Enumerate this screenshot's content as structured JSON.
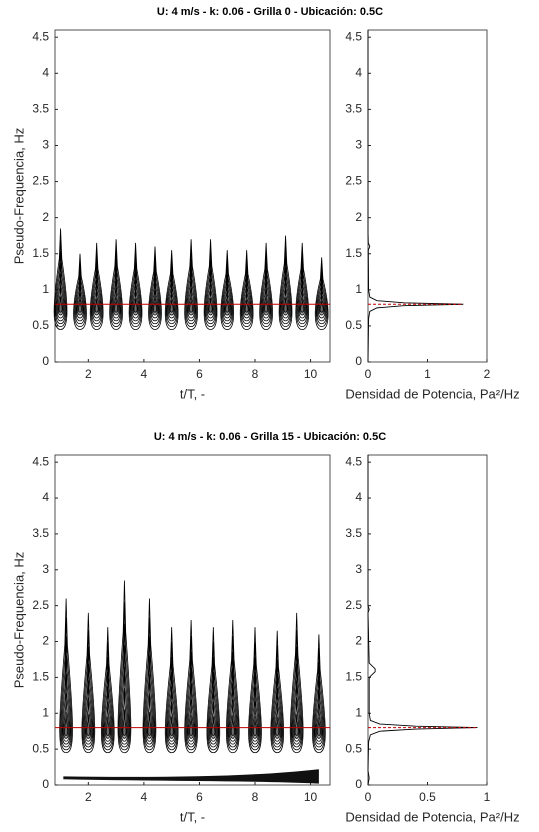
{
  "chart_data": [
    {
      "type": "contour",
      "title": "U: 4 m/s - k: 0.06 - Grilla 0 - Ubicación: 0.5C",
      "xlabel": "t/T, -",
      "ylabel": "Pseudo-Frequencia, Hz",
      "xlim": [
        0.8,
        10.7
      ],
      "xticks": [
        2,
        4,
        6,
        8,
        10
      ],
      "ylim": [
        0,
        4.6
      ],
      "yticks": [
        0,
        0.5,
        1,
        1.5,
        2,
        2.5,
        3,
        3.5,
        4,
        4.5
      ],
      "lobes": {
        "x": [
          1.0,
          1.7,
          2.3,
          3.0,
          3.7,
          4.4,
          5.0,
          5.7,
          6.4,
          7.0,
          7.7,
          8.4,
          9.1,
          9.7,
          10.4
        ],
        "values": [
          1.85,
          1.5,
          1.65,
          1.7,
          1.65,
          1.6,
          1.55,
          1.7,
          1.7,
          1.55,
          1.55,
          1.65,
          1.75,
          1.65,
          1.45
        ]
      },
      "ref_line": 0.8,
      "color": "#000000",
      "ref_color": "#c00000"
    },
    {
      "type": "psd",
      "xlabel": "Densidad de Potencia, Pa²/Hz",
      "xlim": [
        0,
        2
      ],
      "xticks": [
        0,
        1,
        2
      ],
      "ylim": [
        0,
        4.6
      ],
      "yticks": [
        0,
        0.5,
        1,
        1.5,
        2,
        2.5,
        3,
        3.5,
        4,
        4.5
      ],
      "y": [
        0,
        0.6,
        0.7,
        0.75,
        0.78,
        0.8,
        0.82,
        0.85,
        0.9,
        1.0,
        1.55,
        1.6,
        1.65,
        1.8,
        4.6
      ],
      "values": [
        0,
        0.01,
        0.03,
        0.15,
        0.6,
        1.6,
        0.6,
        0.15,
        0.03,
        0.01,
        0.005,
        0.03,
        0.005,
        0,
        0
      ],
      "ref_line": 0.8,
      "color": "#000000",
      "ref_color": "#c00000"
    },
    {
      "type": "contour",
      "title": "U: 4 m/s - k: 0.06 - Grilla 15 - Ubicación: 0.5C",
      "xlabel": "t/T, -",
      "ylabel": "Pseudo-Frequencia, Hz",
      "xlim": [
        0.8,
        10.7
      ],
      "xticks": [
        2,
        4,
        6,
        8,
        10
      ],
      "ylim": [
        0,
        4.6
      ],
      "yticks": [
        0,
        0.5,
        1,
        1.5,
        2,
        2.5,
        3,
        3.5,
        4,
        4.5
      ],
      "lobes": {
        "x": [
          1.2,
          2.0,
          2.7,
          3.3,
          4.2,
          5.0,
          5.7,
          6.5,
          7.2,
          8.0,
          8.8,
          9.5,
          10.3
        ],
        "values": [
          2.6,
          2.4,
          2.2,
          2.85,
          2.6,
          2.2,
          2.3,
          2.2,
          2.3,
          2.2,
          2.15,
          2.4,
          2.1
        ]
      },
      "ref_line": 0.8,
      "color": "#000000",
      "ref_color": "#c00000"
    },
    {
      "type": "psd",
      "xlabel": "Densidad de Potencia, Pa²/Hz",
      "xlim": [
        0,
        1
      ],
      "xticks": [
        0,
        0.5,
        1
      ],
      "ylim": [
        0,
        4.6
      ],
      "yticks": [
        0,
        0.5,
        1,
        1.5,
        2,
        2.5,
        3,
        3.5,
        4,
        4.5
      ],
      "y": [
        0,
        0.1,
        0.2,
        0.6,
        0.7,
        0.75,
        0.78,
        0.8,
        0.82,
        0.85,
        0.9,
        1.0,
        1.5,
        1.58,
        1.62,
        1.7,
        2.4,
        2.45,
        2.5,
        4.6
      ],
      "values": [
        0,
        0.01,
        0,
        0.005,
        0.02,
        0.1,
        0.4,
        0.92,
        0.4,
        0.1,
        0.02,
        0.01,
        0.01,
        0.06,
        0.06,
        0.01,
        0,
        0.01,
        0,
        0
      ],
      "ref_line": 0.8,
      "color": "#000000",
      "ref_color": "#c00000"
    }
  ]
}
